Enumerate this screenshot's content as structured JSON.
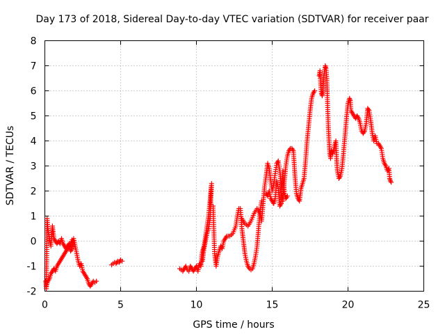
{
  "chart_data": {
    "type": "scatter",
    "title": "Day 173 of 2018, Sidereal Day-to-day VTEC variation (SDTVAR) for receiver paar",
    "xlabel": "GPS time / hours",
    "ylabel": "SDTVAR / TECUs",
    "xlim": [
      0,
      25
    ],
    "ylim": [
      -2,
      8
    ],
    "xticks": [
      0,
      5,
      10,
      15,
      20,
      25
    ],
    "yticks": [
      -2,
      -1,
      0,
      1,
      2,
      3,
      4,
      5,
      6,
      7,
      8
    ],
    "grid": true,
    "marker": "+",
    "series": [
      {
        "name": "SDTVAR",
        "color": "#ff0000",
        "segments": [
          [
            [
              0.05,
              -1.6
            ],
            [
              0.1,
              -1.9
            ],
            [
              0.15,
              0.9
            ],
            [
              0.2,
              0.5
            ],
            [
              0.3,
              0.1
            ],
            [
              0.4,
              -0.2
            ],
            [
              0.5,
              0.6
            ],
            [
              0.6,
              0.1
            ],
            [
              0.7,
              0.0
            ],
            [
              0.8,
              -0.1
            ],
            [
              0.9,
              0.0
            ],
            [
              1.0,
              -0.1
            ],
            [
              1.1,
              0.1
            ],
            [
              1.2,
              -0.1
            ],
            [
              1.3,
              -0.2
            ],
            [
              1.4,
              -0.3
            ],
            [
              1.5,
              -0.2
            ],
            [
              1.6,
              -0.1
            ],
            [
              1.7,
              -0.4
            ],
            [
              1.8,
              -0.3
            ],
            [
              1.9,
              0.1
            ],
            [
              2.0,
              -0.2
            ],
            [
              2.1,
              -0.5
            ],
            [
              2.2,
              -0.8
            ],
            [
              2.3,
              -1.0
            ],
            [
              2.4,
              -0.9
            ],
            [
              2.5,
              -1.2
            ],
            [
              2.6,
              -1.3
            ],
            [
              2.7,
              -1.4
            ],
            [
              2.8,
              -1.5
            ],
            [
              2.9,
              -1.7
            ],
            [
              3.0,
              -1.8
            ],
            [
              3.1,
              -1.7
            ],
            [
              3.2,
              -1.6
            ],
            [
              3.3,
              -1.65
            ],
            [
              3.4,
              -1.6
            ]
          ],
          [
            [
              0.1,
              -1.8
            ],
            [
              0.2,
              -1.6
            ],
            [
              0.3,
              -1.5
            ],
            [
              0.4,
              -1.3
            ],
            [
              0.5,
              -1.2
            ],
            [
              0.6,
              -1.1
            ],
            [
              0.7,
              -1.2
            ],
            [
              0.8,
              -1.0
            ],
            [
              0.9,
              -0.9
            ],
            [
              1.0,
              -0.8
            ],
            [
              1.1,
              -0.7
            ],
            [
              1.2,
              -0.6
            ],
            [
              1.3,
              -0.5
            ],
            [
              1.4,
              -0.4
            ],
            [
              1.5,
              -0.3
            ],
            [
              1.6,
              -0.2
            ],
            [
              1.7,
              -0.1
            ],
            [
              1.8,
              0.05
            ],
            [
              1.9,
              -0.2
            ]
          ],
          [
            [
              4.4,
              -0.95
            ],
            [
              4.5,
              -0.9
            ],
            [
              4.6,
              -0.85
            ],
            [
              4.7,
              -0.9
            ],
            [
              4.8,
              -0.8
            ],
            [
              4.9,
              -0.85
            ],
            [
              5.0,
              -0.75
            ],
            [
              5.1,
              -0.8
            ]
          ],
          [
            [
              8.9,
              -1.1
            ],
            [
              9.0,
              -1.15
            ],
            [
              9.1,
              -1.2
            ],
            [
              9.2,
              -1.1
            ],
            [
              9.3,
              -1.0
            ],
            [
              9.4,
              -1.15
            ],
            [
              9.5,
              -1.2
            ],
            [
              9.6,
              -1.0
            ],
            [
              9.7,
              -1.1
            ],
            [
              9.8,
              -1.2
            ],
            [
              9.9,
              -1.1
            ],
            [
              10.0,
              -1.0
            ],
            [
              10.1,
              -1.2
            ],
            [
              10.2,
              -0.9
            ],
            [
              10.3,
              -1.0
            ],
            [
              10.35,
              -0.6
            ],
            [
              10.4,
              -0.4
            ],
            [
              10.5,
              -0.2
            ],
            [
              10.6,
              0.2
            ],
            [
              10.7,
              0.6
            ],
            [
              10.8,
              1.0
            ],
            [
              10.85,
              1.3
            ],
            [
              10.9,
              1.6
            ],
            [
              10.95,
              2.0
            ],
            [
              11.0,
              2.3
            ],
            [
              10.9,
              0.9
            ],
            [
              10.8,
              0.5
            ],
            [
              10.7,
              0.3
            ],
            [
              10.6,
              0.0
            ],
            [
              10.5,
              -0.3
            ],
            [
              10.4,
              -0.8
            ]
          ],
          [
            [
              11.1,
              1.4
            ],
            [
              11.2,
              -0.5
            ],
            [
              11.3,
              -1.0
            ],
            [
              11.4,
              -0.6
            ],
            [
              11.5,
              -0.4
            ],
            [
              11.6,
              -0.2
            ],
            [
              11.7,
              -0.3
            ],
            [
              11.8,
              0.0
            ],
            [
              11.9,
              0.1
            ],
            [
              12.0,
              0.2
            ],
            [
              12.2,
              0.2
            ],
            [
              12.4,
              0.3
            ],
            [
              12.6,
              0.6
            ],
            [
              12.7,
              1.0
            ],
            [
              12.8,
              1.3
            ],
            [
              12.9,
              1.3
            ],
            [
              13.0,
              0.5
            ],
            [
              13.1,
              0.0
            ],
            [
              13.2,
              -0.5
            ],
            [
              13.3,
              -0.8
            ],
            [
              13.4,
              -1.0
            ],
            [
              13.5,
              -1.1
            ],
            [
              13.6,
              -1.15
            ],
            [
              13.7,
              -1.1
            ],
            [
              13.8,
              -0.9
            ],
            [
              13.9,
              -0.6
            ],
            [
              14.0,
              -0.2
            ],
            [
              14.1,
              0.5
            ],
            [
              14.2,
              1.2
            ],
            [
              14.3,
              1.6
            ]
          ],
          [
            [
              13.0,
              0.9
            ],
            [
              13.2,
              0.7
            ],
            [
              13.4,
              0.6
            ],
            [
              13.6,
              0.8
            ],
            [
              13.8,
              1.1
            ],
            [
              14.0,
              1.3
            ],
            [
              14.2,
              1.1
            ],
            [
              14.3,
              0.8
            ],
            [
              14.4,
              1.5
            ],
            [
              14.5,
              2.2
            ],
            [
              14.6,
              2.6
            ],
            [
              14.7,
              3.1
            ],
            [
              14.8,
              2.9
            ],
            [
              14.9,
              2.4
            ],
            [
              15.0,
              2.0
            ],
            [
              15.1,
              2.3
            ],
            [
              15.2,
              2.7
            ],
            [
              15.3,
              3.1
            ],
            [
              15.4,
              3.2
            ],
            [
              15.5,
              2.8
            ],
            [
              15.6,
              2.2
            ],
            [
              15.7,
              1.6
            ],
            [
              15.8,
              2.4
            ],
            [
              15.9,
              3.0
            ],
            [
              16.0,
              3.4
            ],
            [
              16.1,
              3.6
            ],
            [
              16.2,
              3.7
            ],
            [
              16.3,
              3.7
            ],
            [
              16.4,
              3.6
            ],
            [
              16.5,
              2.6
            ],
            [
              16.6,
              1.9
            ],
            [
              16.7,
              1.7
            ],
            [
              16.8,
              1.6
            ],
            [
              16.9,
              2.1
            ],
            [
              17.0,
              2.3
            ],
            [
              17.1,
              2.5
            ],
            [
              17.2,
              3.2
            ],
            [
              17.3,
              4.0
            ],
            [
              17.4,
              4.6
            ],
            [
              17.5,
              5.2
            ],
            [
              17.6,
              5.7
            ],
            [
              17.7,
              5.9
            ],
            [
              17.8,
              6.0
            ]
          ],
          [
            [
              14.6,
              1.9
            ],
            [
              14.7,
              1.8
            ],
            [
              14.8,
              2.0
            ],
            [
              14.9,
              1.7
            ],
            [
              15.0,
              1.6
            ],
            [
              15.1,
              1.5
            ],
            [
              15.2,
              1.7
            ],
            [
              15.3,
              2.4
            ],
            [
              15.4,
              2.1
            ],
            [
              15.5,
              1.4
            ],
            [
              15.6,
              1.5
            ],
            [
              15.7,
              2.8
            ],
            [
              15.8,
              1.9
            ],
            [
              15.9,
              1.7
            ],
            [
              16.0,
              1.8
            ]
          ],
          [
            [
              18.1,
              6.6
            ],
            [
              18.15,
              6.8
            ],
            [
              18.2,
              6.2
            ],
            [
              18.25,
              5.9
            ],
            [
              18.3,
              5.8
            ],
            [
              18.35,
              6.0
            ],
            [
              18.4,
              6.6
            ],
            [
              18.5,
              7.0
            ],
            [
              18.55,
              6.9
            ],
            [
              18.6,
              6.5
            ],
            [
              18.65,
              5.5
            ],
            [
              18.7,
              4.6
            ],
            [
              18.75,
              4.0
            ],
            [
              18.8,
              3.5
            ],
            [
              18.85,
              3.3
            ],
            [
              18.9,
              3.6
            ],
            [
              19.0,
              3.5
            ],
            [
              19.1,
              3.8
            ],
            [
              19.2,
              4.0
            ],
            [
              19.25,
              3.3
            ],
            [
              19.3,
              2.8
            ],
            [
              19.4,
              2.5
            ],
            [
              19.5,
              2.6
            ],
            [
              19.6,
              2.9
            ],
            [
              19.7,
              3.5
            ],
            [
              19.8,
              4.2
            ],
            [
              19.9,
              4.9
            ],
            [
              20.0,
              5.5
            ],
            [
              20.1,
              5.7
            ],
            [
              20.15,
              5.6
            ],
            [
              20.2,
              5.2
            ],
            [
              20.3,
              5.1
            ],
            [
              20.4,
              5.0
            ],
            [
              20.5,
              4.9
            ],
            [
              20.6,
              5.0
            ],
            [
              20.7,
              4.9
            ],
            [
              20.8,
              4.7
            ],
            [
              20.9,
              4.4
            ],
            [
              21.0,
              4.3
            ],
            [
              21.1,
              4.4
            ],
            [
              21.2,
              4.7
            ],
            [
              21.3,
              5.3
            ],
            [
              21.4,
              5.2
            ],
            [
              21.5,
              4.8
            ],
            [
              21.6,
              4.3
            ],
            [
              21.7,
              4.0
            ],
            [
              21.8,
              4.2
            ],
            [
              21.9,
              3.9
            ],
            [
              22.0,
              3.9
            ],
            [
              22.1,
              3.8
            ],
            [
              22.2,
              3.7
            ],
            [
              22.3,
              3.3
            ],
            [
              22.4,
              3.1
            ],
            [
              22.5,
              3.0
            ],
            [
              22.6,
              2.8
            ],
            [
              22.7,
              2.9
            ],
            [
              22.75,
              2.5
            ],
            [
              22.8,
              2.4
            ],
            [
              22.85,
              2.35
            ]
          ]
        ]
      }
    ]
  }
}
